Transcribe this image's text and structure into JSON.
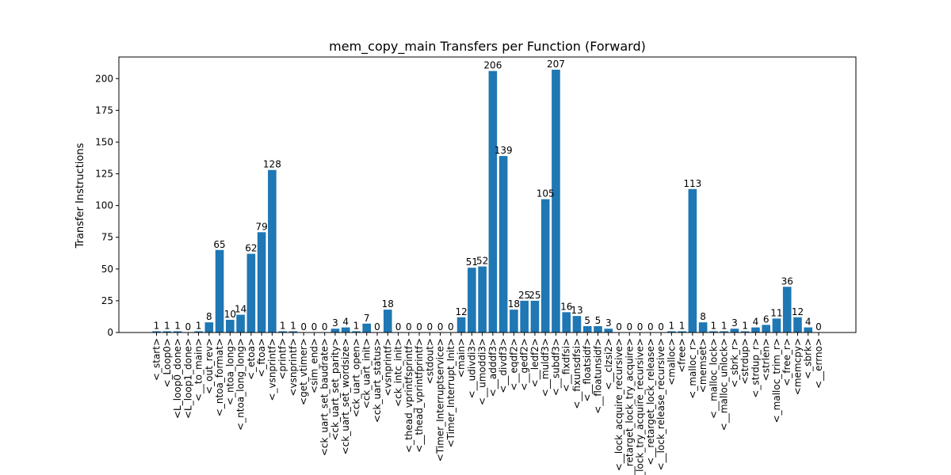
{
  "chart_data": {
    "type": "bar",
    "title": "mem_copy_main Transfers per Function (Forward)",
    "xlabel": "",
    "ylabel": "Transfer Instructions",
    "ylim": [
      0,
      217
    ],
    "yticks": [
      0,
      25,
      50,
      75,
      100,
      125,
      150,
      175,
      200
    ],
    "bar_color": "#1f77b4",
    "grid": false,
    "categories": [
      "<_start>",
      "<_Loop0>",
      "<L_loop0_done>",
      "<L_loop1_done>",
      "<__to_main>",
      "<_out_rev>",
      "<_ntoa_format>",
      "<_ntoa_long>",
      "<_ntoa_long_long>",
      "<_etoa>",
      "<_ftoa>",
      "<_vsnprintf>",
      "<printf>",
      "<vsnprintf>",
      "<get_vtimer>",
      "<sim_end>",
      "<ck_uart_set_baudrate>",
      "<ck_uart_set_parity>",
      "<ck_uart_set_wordsize>",
      "<ck_uart_open>",
      "<ck_uart_init>",
      "<ck_uart_status>",
      "<vsnprintf>",
      "<ck_intc_init>",
      "<_thead_vprintfsprintf>",
      "<__thead_vprintfprintf>",
      "<stdout>",
      "<Timer_Interruptservice>",
      "<Timer_Interrupt_Init>",
      "<main>",
      "<__udivdi3>",
      "<__umoddi3>",
      "<__adddf3>",
      "<__divdf3>",
      "<__eqdf2>",
      "<__gedf2>",
      "<__ledf2>",
      "<__muldf3>",
      "<__subdf3>",
      "<__fixdfsi>",
      "<__fixunsdfsi>",
      "<__floatsidf>",
      "<__floatunsidf>",
      "<__clzsi2>",
      "<__lock_acquire_recursive>",
      "<__retarget_lock_try_acquire>",
      "<__lock_try_acquire_recursive>",
      "<__retarget_lock_release>",
      "<__lock_release_recursive>",
      "<malloc>",
      "<free>",
      "<_malloc_r>",
      "<memset>",
      "<__malloc_lock>",
      "<__malloc_unlock>",
      "<_sbrk_r>",
      "<strdup>",
      "<_strdup_r>",
      "<strlen>",
      "<_malloc_trim_r>",
      "<_free_r>",
      "<memcpy>",
      "<_sbrk>",
      "<__errno>"
    ],
    "values": [
      1,
      1,
      1,
      0,
      1,
      8,
      65,
      10,
      14,
      62,
      79,
      128,
      1,
      1,
      0,
      0,
      0,
      3,
      4,
      1,
      7,
      0,
      18,
      0,
      0,
      0,
      0,
      0,
      0,
      12,
      51,
      52,
      206,
      139,
      18,
      25,
      25,
      105,
      207,
      16,
      13,
      5,
      5,
      3,
      0,
      0,
      0,
      0,
      0,
      1,
      1,
      113,
      8,
      1,
      1,
      3,
      1,
      4,
      6,
      11,
      36,
      12,
      4,
      0
    ]
  }
}
